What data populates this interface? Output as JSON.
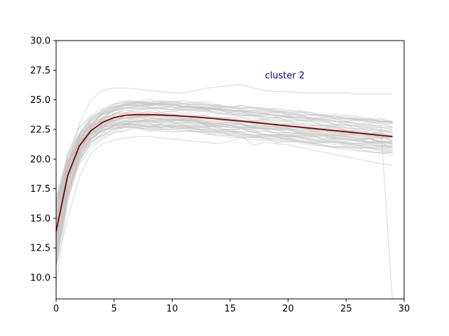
{
  "chart_data": {
    "type": "line",
    "title": "",
    "xlabel": "",
    "ylabel": "",
    "xlim": [
      0,
      30
    ],
    "ylim": [
      8.2,
      30.0
    ],
    "xticks": [
      0,
      5,
      10,
      15,
      20,
      25,
      30
    ],
    "yticks": [
      10.0,
      12.5,
      15.0,
      17.5,
      20.0,
      22.5,
      25.0,
      27.5,
      30.0
    ],
    "grid": false,
    "legend": "none",
    "annotation": {
      "text": "cluster 2",
      "x": 18.0,
      "y": 26.8,
      "color": "#00008b"
    },
    "background_series": {
      "color": "#bfbfbf",
      "description_count": 60,
      "envelope_note": "many gray member curves",
      "outliers": [
        {
          "x": [
            0,
            1,
            2,
            3,
            4,
            5,
            6,
            7,
            8,
            9,
            10,
            11,
            12,
            13,
            14,
            15,
            16,
            17,
            18,
            19,
            20,
            21,
            22,
            23,
            24,
            25,
            26,
            27,
            28,
            29
          ],
          "y": [
            9.5,
            16.5,
            20.5,
            22.5,
            23.5,
            24.2,
            24.6,
            24.8,
            24.8,
            24.7,
            24.6,
            24.5,
            24.4,
            24.3,
            24.2,
            24.1,
            24.0,
            23.9,
            23.8,
            23.7,
            23.6,
            23.5,
            23.4,
            23.3,
            23.2,
            23.1,
            23.0,
            22.9,
            22.8,
            8.0
          ]
        },
        {
          "x": [
            0,
            1,
            2,
            3,
            4,
            5,
            6,
            7,
            8,
            9,
            10,
            11,
            12,
            13,
            14,
            15,
            16,
            17,
            18,
            19,
            20,
            21,
            22,
            23,
            24,
            25,
            26,
            27,
            28,
            29
          ],
          "y": [
            13.0,
            19.5,
            23.0,
            25.0,
            25.8,
            26.0,
            26.0,
            25.9,
            25.8,
            25.7,
            25.6,
            25.6,
            25.8,
            26.0,
            26.1,
            26.2,
            26.3,
            26.0,
            25.8,
            25.7,
            25.7,
            25.6,
            25.6,
            25.6,
            25.6,
            25.6,
            25.5,
            25.5,
            25.5,
            25.5
          ]
        },
        {
          "x": [
            0,
            1,
            2,
            3,
            4,
            5,
            6,
            7,
            8,
            9,
            10,
            11,
            12,
            13,
            14,
            15,
            16,
            17,
            18,
            19,
            20,
            21,
            22,
            23,
            24,
            25,
            26,
            27,
            28,
            29
          ],
          "y": [
            11.0,
            15.0,
            18.5,
            20.5,
            21.3,
            21.6,
            21.8,
            21.9,
            21.9,
            21.8,
            21.7,
            21.6,
            21.5,
            21.4,
            21.3,
            21.5,
            21.9,
            21.2,
            21.4,
            21.3,
            21.2,
            21.0,
            20.8,
            20.6,
            20.4,
            20.2,
            20.0,
            19.8,
            19.6,
            19.5
          ]
        }
      ]
    },
    "series": [
      {
        "color": "#800000",
        "x": [
          0,
          1,
          2,
          3,
          4,
          5,
          6,
          7,
          8,
          9,
          10,
          11,
          12,
          13,
          14,
          15,
          16,
          17,
          18,
          19,
          20,
          21,
          22,
          23,
          24,
          25,
          26,
          27,
          28,
          29
        ],
        "y": [
          13.9,
          18.6,
          21.1,
          22.4,
          23.1,
          23.5,
          23.7,
          23.75,
          23.75,
          23.72,
          23.68,
          23.62,
          23.55,
          23.47,
          23.38,
          23.29,
          23.2,
          23.1,
          23.0,
          22.9,
          22.8,
          22.7,
          22.6,
          22.5,
          22.4,
          22.3,
          22.2,
          22.1,
          22.0,
          21.9
        ]
      }
    ]
  }
}
